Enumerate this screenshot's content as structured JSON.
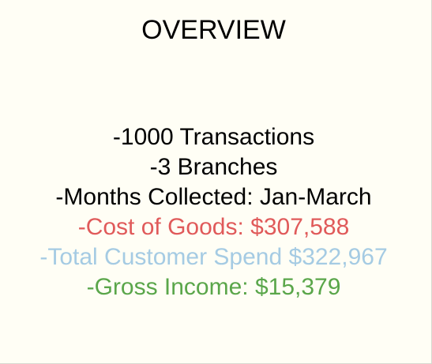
{
  "title": "OVERVIEW",
  "lines": [
    {
      "text": "-1000 Transactions",
      "color": "#000000"
    },
    {
      "text": "-3 Branches",
      "color": "#000000"
    },
    {
      "text": "-Months Collected: Jan-March",
      "color": "#000000"
    },
    {
      "text": "-Cost of Goods: $307,588",
      "color": "#e05a5a"
    },
    {
      "text": "-Total Customer Spend $322,967",
      "color": "#a5cbe3"
    },
    {
      "text": "-Gross Income: $15,379",
      "color": "#5aa64a"
    }
  ]
}
